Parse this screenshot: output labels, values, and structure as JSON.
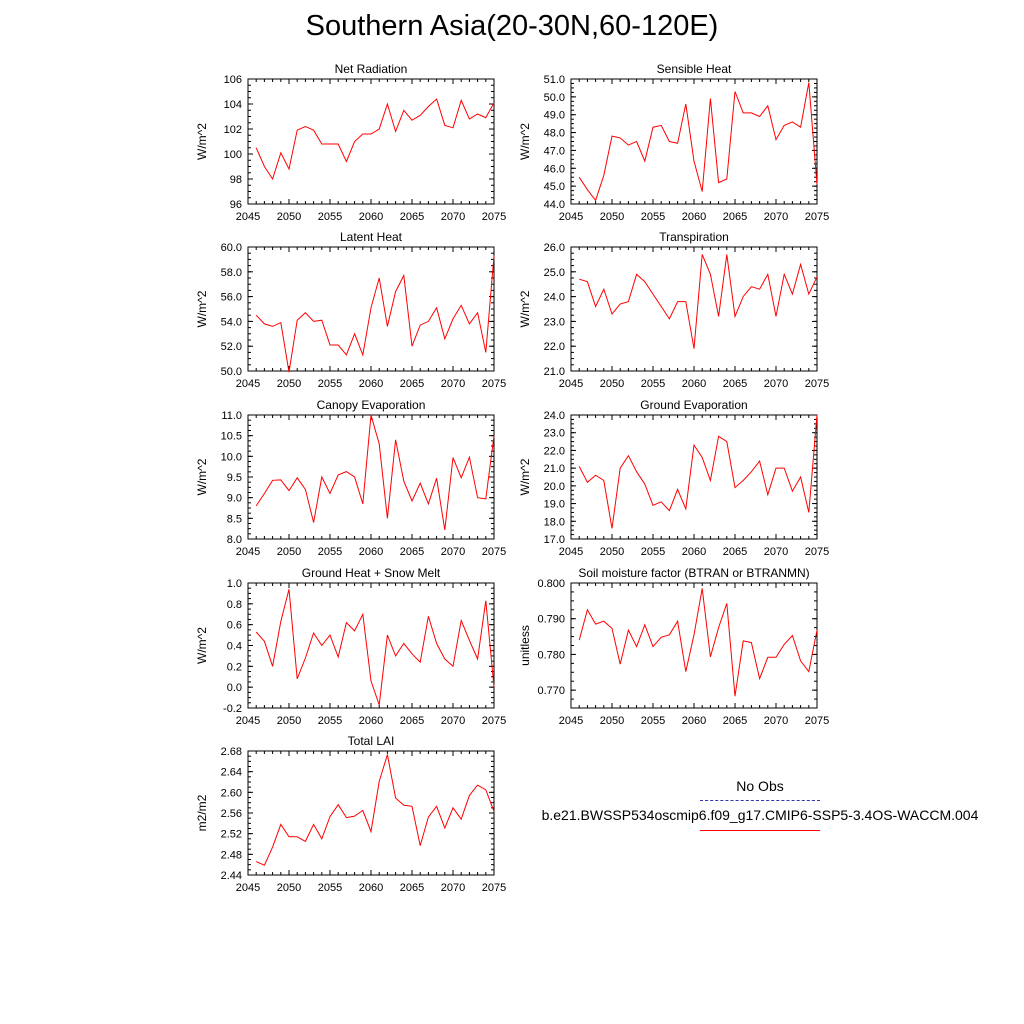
{
  "title": "Southern Asia(20-30N,60-120E)",
  "colors": {
    "model": "#ff0000",
    "obs": "#3333aa",
    "axis": "#000000"
  },
  "legend": {
    "obs_label": "No Obs",
    "model_label": "b.e21.BWSSP534oscmip6.f09_g17.CMIP6-SSP5-3.4OS-WACCM.004"
  },
  "chart_data": [
    {
      "type": "line",
      "title": "Net Radiation",
      "xlabel": "",
      "ylabel": "W/m^2",
      "xlim": [
        2045,
        2075
      ],
      "ylim": [
        96,
        106
      ],
      "xticks": [
        2045,
        2050,
        2055,
        2060,
        2065,
        2070,
        2075
      ],
      "xtick_labels": [
        "2045",
        "2050",
        "2055",
        "2060",
        "2065",
        "2070",
        "2075"
      ],
      "yticks": [
        96,
        98,
        100,
        102,
        104,
        106
      ],
      "ytick_labels": [
        "96",
        "98",
        "100",
        "102",
        "104",
        "106"
      ],
      "x": [
        2046,
        2047,
        2048,
        2049,
        2050,
        2051,
        2052,
        2053,
        2054,
        2055,
        2056,
        2057,
        2058,
        2059,
        2060,
        2061,
        2062,
        2063,
        2064,
        2065,
        2066,
        2067,
        2068,
        2069,
        2070,
        2071,
        2072,
        2073,
        2074,
        2075
      ],
      "series": [
        {
          "values": [
            100.5,
            99.0,
            98.0,
            100.1,
            98.8,
            101.9,
            102.2,
            101.9,
            100.8,
            100.8,
            100.8,
            99.4,
            101.0,
            101.6,
            101.6,
            102.0,
            104.0,
            101.8,
            103.5,
            102.7,
            103.1,
            103.8,
            104.4,
            102.3,
            102.1,
            104.3,
            102.8,
            103.2,
            102.9,
            104.1
          ]
        }
      ]
    },
    {
      "type": "line",
      "title": "Sensible Heat",
      "xlabel": "",
      "ylabel": "W/m^2",
      "xlim": [
        2045,
        2075
      ],
      "ylim": [
        44.0,
        51.0
      ],
      "xticks": [
        2045,
        2050,
        2055,
        2060,
        2065,
        2070,
        2075
      ],
      "xtick_labels": [
        "2045",
        "2050",
        "2055",
        "2060",
        "2065",
        "2070",
        "2075"
      ],
      "yticks": [
        44,
        45,
        46,
        47,
        48,
        49,
        50,
        51
      ],
      "ytick_labels": [
        "44.0",
        "45.0",
        "46.0",
        "47.0",
        "48.0",
        "49.0",
        "50.0",
        "51.0"
      ],
      "x": [
        2046,
        2047,
        2048,
        2049,
        2050,
        2051,
        2052,
        2053,
        2054,
        2055,
        2056,
        2057,
        2058,
        2059,
        2060,
        2061,
        2062,
        2063,
        2064,
        2065,
        2066,
        2067,
        2068,
        2069,
        2070,
        2071,
        2072,
        2073,
        2074,
        2075
      ],
      "series": [
        {
          "values": [
            45.5,
            44.8,
            44.2,
            45.6,
            47.8,
            47.7,
            47.3,
            47.5,
            46.4,
            48.3,
            48.4,
            47.5,
            47.4,
            49.6,
            46.4,
            44.7,
            49.9,
            45.2,
            45.4,
            50.3,
            49.1,
            49.1,
            48.9,
            49.5,
            47.6,
            48.4,
            48.6,
            48.3,
            50.8,
            45.1
          ]
        }
      ]
    },
    {
      "type": "line",
      "title": "Latent Heat",
      "xlabel": "",
      "ylabel": "W/m^2",
      "xlim": [
        2045,
        2075
      ],
      "ylim": [
        50.0,
        60.0
      ],
      "xticks": [
        2045,
        2050,
        2055,
        2060,
        2065,
        2070,
        2075
      ],
      "xtick_labels": [
        "2045",
        "2050",
        "2055",
        "2060",
        "2065",
        "2070",
        "2075"
      ],
      "yticks": [
        50,
        52,
        54,
        56,
        58,
        60
      ],
      "ytick_labels": [
        "50.0",
        "52.0",
        "54.0",
        "56.0",
        "58.0",
        "60.0"
      ],
      "x": [
        2046,
        2047,
        2048,
        2049,
        2050,
        2051,
        2052,
        2053,
        2054,
        2055,
        2056,
        2057,
        2058,
        2059,
        2060,
        2061,
        2062,
        2063,
        2064,
        2065,
        2066,
        2067,
        2068,
        2069,
        2070,
        2071,
        2072,
        2073,
        2074,
        2075
      ],
      "series": [
        {
          "values": [
            54.5,
            53.8,
            53.6,
            53.9,
            49.9,
            54.1,
            54.7,
            54.0,
            54.1,
            52.1,
            52.1,
            51.3,
            53.0,
            51.3,
            55.1,
            57.5,
            53.6,
            56.4,
            57.7,
            52.0,
            53.7,
            54.0,
            55.1,
            52.6,
            54.2,
            55.3,
            53.8,
            54.7,
            51.5,
            59.3
          ]
        }
      ]
    },
    {
      "type": "line",
      "title": "Transpiration",
      "xlabel": "",
      "ylabel": "W/m^2",
      "xlim": [
        2045,
        2075
      ],
      "ylim": [
        21.0,
        26.0
      ],
      "xticks": [
        2045,
        2050,
        2055,
        2060,
        2065,
        2070,
        2075
      ],
      "xtick_labels": [
        "2045",
        "2050",
        "2055",
        "2060",
        "2065",
        "2070",
        "2075"
      ],
      "yticks": [
        21,
        22,
        23,
        24,
        25,
        26
      ],
      "ytick_labels": [
        "21.0",
        "22.0",
        "23.0",
        "24.0",
        "25.0",
        "26.0"
      ],
      "x": [
        2046,
        2047,
        2048,
        2049,
        2050,
        2051,
        2052,
        2053,
        2054,
        2055,
        2056,
        2057,
        2058,
        2059,
        2060,
        2061,
        2062,
        2063,
        2064,
        2065,
        2066,
        2067,
        2068,
        2069,
        2070,
        2071,
        2072,
        2073,
        2074,
        2075
      ],
      "series": [
        {
          "values": [
            24.7,
            24.6,
            23.6,
            24.3,
            23.3,
            23.7,
            23.8,
            24.9,
            24.6,
            24.1,
            23.6,
            23.1,
            23.8,
            23.8,
            21.9,
            25.7,
            24.9,
            23.2,
            25.7,
            23.2,
            24.0,
            24.4,
            24.3,
            24.9,
            23.2,
            24.9,
            24.1,
            25.3,
            24.1,
            24.8
          ]
        }
      ]
    },
    {
      "type": "line",
      "title": "Canopy Evaporation",
      "xlabel": "",
      "ylabel": "W/m^2",
      "xlim": [
        2045,
        2075
      ],
      "ylim": [
        8.0,
        11.0
      ],
      "xticks": [
        2045,
        2050,
        2055,
        2060,
        2065,
        2070,
        2075
      ],
      "xtick_labels": [
        "2045",
        "2050",
        "2055",
        "2060",
        "2065",
        "2070",
        "2075"
      ],
      "yticks": [
        8.0,
        8.5,
        9.0,
        9.5,
        10.0,
        10.5,
        11.0
      ],
      "ytick_labels": [
        "8.0",
        "8.5",
        "9.0",
        "9.5",
        "10.0",
        "10.5",
        "11.0"
      ],
      "x": [
        2046,
        2047,
        2048,
        2049,
        2050,
        2051,
        2052,
        2053,
        2054,
        2055,
        2056,
        2057,
        2058,
        2059,
        2060,
        2061,
        2062,
        2063,
        2064,
        2065,
        2066,
        2067,
        2068,
        2069,
        2070,
        2071,
        2072,
        2073,
        2074,
        2075
      ],
      "series": [
        {
          "values": [
            8.8,
            9.1,
            9.42,
            9.43,
            9.17,
            9.48,
            9.2,
            8.4,
            9.5,
            9.1,
            9.55,
            9.63,
            9.5,
            8.85,
            11.0,
            10.3,
            8.5,
            10.4,
            9.4,
            8.92,
            9.35,
            8.85,
            9.47,
            8.22,
            9.97,
            9.48,
            9.98,
            9.0,
            8.97,
            10.5
          ]
        }
      ]
    },
    {
      "type": "line",
      "title": "Ground Evaporation",
      "xlabel": "",
      "ylabel": "W/m^2",
      "xlim": [
        2045,
        2075
      ],
      "ylim": [
        17.0,
        24.0
      ],
      "xticks": [
        2045,
        2050,
        2055,
        2060,
        2065,
        2070,
        2075
      ],
      "xtick_labels": [
        "2045",
        "2050",
        "2055",
        "2060",
        "2065",
        "2070",
        "2075"
      ],
      "yticks": [
        17,
        18,
        19,
        20,
        21,
        22,
        23,
        24
      ],
      "ytick_labels": [
        "17.0",
        "18.0",
        "19.0",
        "20.0",
        "21.0",
        "22.0",
        "23.0",
        "24.0"
      ],
      "x": [
        2046,
        2047,
        2048,
        2049,
        2050,
        2051,
        2052,
        2053,
        2054,
        2055,
        2056,
        2057,
        2058,
        2059,
        2060,
        2061,
        2062,
        2063,
        2064,
        2065,
        2066,
        2067,
        2068,
        2069,
        2070,
        2071,
        2072,
        2073,
        2074,
        2075
      ],
      "series": [
        {
          "values": [
            21.1,
            20.2,
            20.6,
            20.3,
            17.6,
            21.0,
            21.7,
            20.8,
            20.1,
            18.9,
            19.1,
            18.6,
            19.8,
            18.7,
            22.3,
            21.6,
            20.3,
            22.8,
            22.5,
            19.9,
            20.3,
            20.8,
            21.4,
            19.5,
            21.0,
            21.0,
            19.7,
            20.5,
            18.5,
            24.0
          ]
        }
      ]
    },
    {
      "type": "line",
      "title": "Ground Heat + Snow Melt",
      "xlabel": "",
      "ylabel": "W/m^2",
      "xlim": [
        2045,
        2075
      ],
      "ylim": [
        -0.2,
        1.0
      ],
      "xticks": [
        2045,
        2050,
        2055,
        2060,
        2065,
        2070,
        2075
      ],
      "xtick_labels": [
        "2045",
        "2050",
        "2055",
        "2060",
        "2065",
        "2070",
        "2075"
      ],
      "yticks": [
        -0.2,
        0.0,
        0.2,
        0.4,
        0.6,
        0.8,
        1.0
      ],
      "ytick_labels": [
        "-0.2",
        "0.0",
        "0.2",
        "0.4",
        "0.6",
        "0.8",
        "1.0"
      ],
      "x": [
        2046,
        2047,
        2048,
        2049,
        2050,
        2051,
        2052,
        2053,
        2054,
        2055,
        2056,
        2057,
        2058,
        2059,
        2060,
        2061,
        2062,
        2063,
        2064,
        2065,
        2066,
        2067,
        2068,
        2069,
        2070,
        2071,
        2072,
        2073,
        2074,
        2075
      ],
      "series": [
        {
          "values": [
            0.53,
            0.44,
            0.2,
            0.63,
            0.94,
            0.08,
            0.28,
            0.52,
            0.4,
            0.5,
            0.29,
            0.62,
            0.54,
            0.7,
            0.06,
            -0.17,
            0.5,
            0.3,
            0.42,
            0.32,
            0.24,
            0.68,
            0.42,
            0.27,
            0.2,
            0.64,
            0.45,
            0.27,
            0.83,
            0.0
          ]
        }
      ]
    },
    {
      "type": "line",
      "title": "Soil moisture factor (BTRAN or BTRANMN)",
      "xlabel": "",
      "ylabel": "unitless",
      "xlim": [
        2045,
        2075
      ],
      "ylim": [
        0.765,
        0.8
      ],
      "xticks": [
        2045,
        2050,
        2055,
        2060,
        2065,
        2070,
        2075
      ],
      "xtick_labels": [
        "2045",
        "2050",
        "2055",
        "2060",
        "2065",
        "2070",
        "2075"
      ],
      "yticks": [
        0.77,
        0.78,
        0.79,
        0.8
      ],
      "ytick_labels": [
        "0.770",
        "0.780",
        "0.790",
        "0.800"
      ],
      "x": [
        2046,
        2047,
        2048,
        2049,
        2050,
        2051,
        2052,
        2053,
        2054,
        2055,
        2056,
        2057,
        2058,
        2059,
        2060,
        2061,
        2062,
        2063,
        2064,
        2065,
        2066,
        2067,
        2068,
        2069,
        2070,
        2071,
        2072,
        2073,
        2074,
        2075
      ],
      "series": [
        {
          "values": [
            0.784,
            0.7925,
            0.7885,
            0.7893,
            0.7873,
            0.7773,
            0.7868,
            0.7822,
            0.7883,
            0.7822,
            0.7848,
            0.7855,
            0.7893,
            0.7752,
            0.7855,
            0.7985,
            0.7793,
            0.7875,
            0.7943,
            0.7683,
            0.7838,
            0.7833,
            0.7732,
            0.7792,
            0.7792,
            0.7828,
            0.7853,
            0.7782,
            0.7752,
            0.7868
          ]
        }
      ]
    },
    {
      "type": "line",
      "title": "Total LAI",
      "xlabel": "",
      "ylabel": "m2/m2",
      "xlim": [
        2045,
        2075
      ],
      "ylim": [
        2.44,
        2.68
      ],
      "xticks": [
        2045,
        2050,
        2055,
        2060,
        2065,
        2070,
        2075
      ],
      "xtick_labels": [
        "2045",
        "2050",
        "2055",
        "2060",
        "2065",
        "2070",
        "2075"
      ],
      "yticks": [
        2.44,
        2.48,
        2.52,
        2.56,
        2.6,
        2.64,
        2.68
      ],
      "ytick_labels": [
        "2.44",
        "2.48",
        "2.52",
        "2.56",
        "2.60",
        "2.64",
        "2.68"
      ],
      "x": [
        2046,
        2047,
        2048,
        2049,
        2050,
        2051,
        2052,
        2053,
        2054,
        2055,
        2056,
        2057,
        2058,
        2059,
        2060,
        2061,
        2062,
        2063,
        2064,
        2065,
        2066,
        2067,
        2068,
        2069,
        2070,
        2071,
        2072,
        2073,
        2074,
        2075
      ],
      "series": [
        {
          "values": [
            2.466,
            2.459,
            2.494,
            2.538,
            2.514,
            2.514,
            2.505,
            2.538,
            2.51,
            2.553,
            2.576,
            2.551,
            2.554,
            2.565,
            2.524,
            2.621,
            2.673,
            2.589,
            2.575,
            2.573,
            2.497,
            2.552,
            2.573,
            2.531,
            2.57,
            2.548,
            2.594,
            2.614,
            2.605,
            2.563
          ]
        }
      ]
    }
  ]
}
